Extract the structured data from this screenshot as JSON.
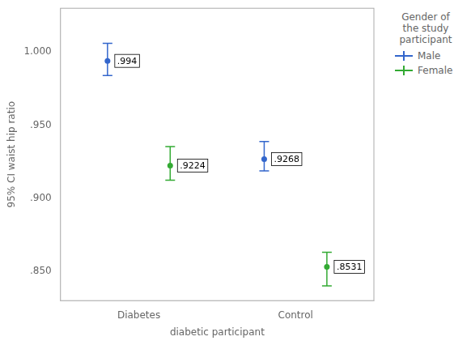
{
  "chart_data": {
    "type": "errorbar",
    "xlabel": "diabetic participant",
    "ylabel": "95% CI waist hip ratio",
    "categories": [
      "Diabetes",
      "Control"
    ],
    "series": [
      {
        "name": "Male",
        "color": "#3366cc",
        "values": [
          0.994,
          0.9268
        ],
        "value_labels": [
          ".994",
          ".9268"
        ],
        "error_upper": [
          0.012,
          0.012
        ],
        "error_lower": [
          0.01,
          0.008
        ]
      },
      {
        "name": "Female",
        "color": "#33aa33",
        "values": [
          0.9224,
          0.8531
        ],
        "value_labels": [
          ".9224",
          ".8531"
        ],
        "error_upper": [
          0.013,
          0.01
        ],
        "error_lower": [
          0.01,
          0.013
        ]
      }
    ],
    "ylim": [
      0.83,
      1.03
    ],
    "yticks": [
      {
        "value": 0.85,
        "label": ".850"
      },
      {
        "value": 0.9,
        "label": ".900"
      },
      {
        "value": 0.95,
        "label": ".950"
      },
      {
        "value": 1.0,
        "label": "1.000"
      }
    ],
    "grid": false,
    "legend": "upper right",
    "legend_title": "Gender of\nthe study\nparticipant",
    "data_labels": true,
    "marker": "circle"
  }
}
